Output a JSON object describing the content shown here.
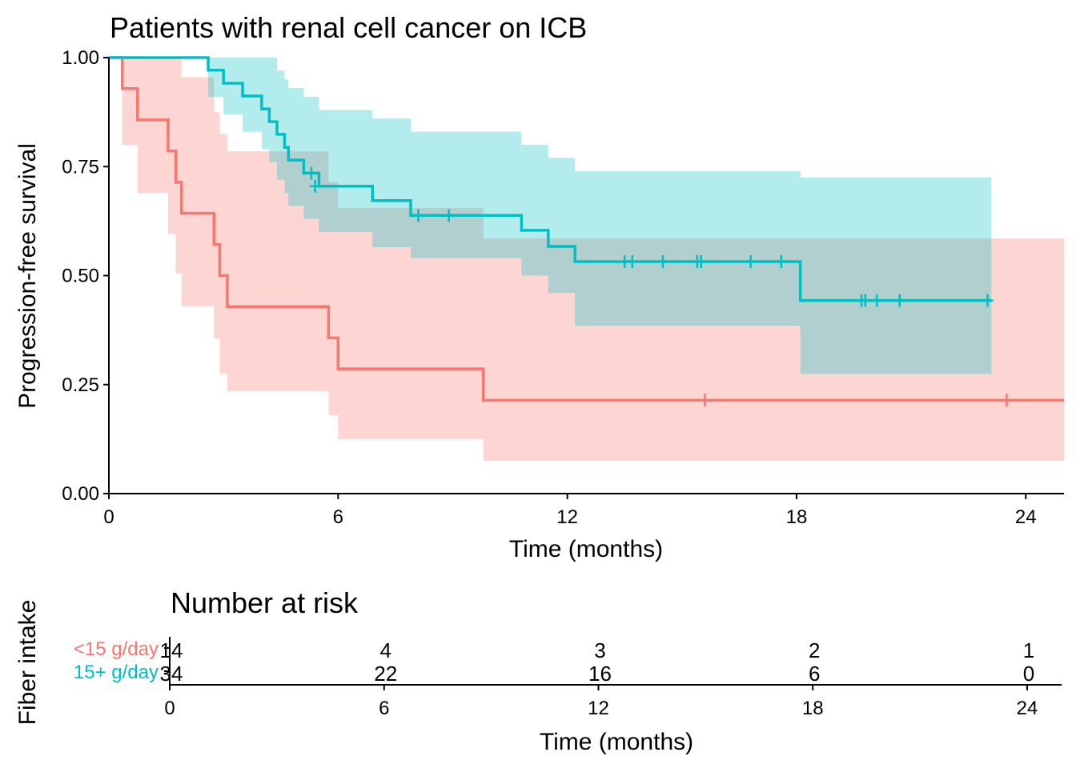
{
  "chart_data": [
    {
      "type": "line",
      "subtype": "kaplan-meier",
      "title": "Patients with renal cell cancer on ICB",
      "xlabel": "Time (months)",
      "ylabel": "Progression-free survival",
      "xlim": [
        0,
        25
      ],
      "ylim": [
        0,
        1
      ],
      "x_ticks": [
        0,
        6,
        12,
        18,
        24
      ],
      "y_ticks": [
        0,
        0.25,
        0.5,
        0.75,
        1
      ],
      "y_tick_labels": [
        "0.00",
        "0.25",
        "0.50",
        "0.75",
        "1.00"
      ],
      "grid": false,
      "legend": "none",
      "series": [
        {
          "color": "#F8766D",
          "band_color": "#F8766D",
          "steps": [
            [
              0,
              1.0
            ],
            [
              0.35,
              0.929
            ],
            [
              0.75,
              0.857
            ],
            [
              1.55,
              0.786
            ],
            [
              1.75,
              0.714
            ],
            [
              1.9,
              0.643
            ],
            [
              2.75,
              0.571
            ],
            [
              2.9,
              0.5
            ],
            [
              3.1,
              0.429
            ],
            [
              5.75,
              0.357
            ],
            [
              6.0,
              0.286
            ],
            [
              9.8,
              0.214
            ],
            [
              25,
              0.214
            ]
          ],
          "upper": [
            [
              0,
              1.0
            ],
            [
              0.35,
              1.0
            ],
            [
              0.75,
              1.0
            ],
            [
              1.55,
              1.0
            ],
            [
              1.75,
              1.0
            ],
            [
              1.9,
              0.955
            ],
            [
              2.75,
              0.875
            ],
            [
              2.9,
              0.825
            ],
            [
              3.1,
              0.785
            ],
            [
              5.75,
              0.715
            ],
            [
              6.0,
              0.655
            ],
            [
              9.8,
              0.585
            ],
            [
              25,
              0.585
            ]
          ],
          "lower": [
            [
              0,
              1.0
            ],
            [
              0.35,
              0.8
            ],
            [
              0.75,
              0.69
            ],
            [
              1.55,
              0.595
            ],
            [
              1.75,
              0.505
            ],
            [
              1.9,
              0.43
            ],
            [
              2.75,
              0.355
            ],
            [
              2.9,
              0.275
            ],
            [
              3.1,
              0.235
            ],
            [
              5.75,
              0.18
            ],
            [
              6.0,
              0.125
            ],
            [
              9.8,
              0.075
            ],
            [
              25,
              0.075
            ]
          ],
          "censored": [
            [
              15.6,
              0.214
            ],
            [
              23.5,
              0.214
            ]
          ]
        },
        {
          "color": "#00BFC4",
          "band_color": "#00BFC4",
          "steps": [
            [
              0,
              1.0
            ],
            [
              2.6,
              0.971
            ],
            [
              3.0,
              0.941
            ],
            [
              3.5,
              0.912
            ],
            [
              4.0,
              0.882
            ],
            [
              4.2,
              0.853
            ],
            [
              4.4,
              0.824
            ],
            [
              4.6,
              0.794
            ],
            [
              4.7,
              0.765
            ],
            [
              5.1,
              0.735
            ],
            [
              5.5,
              0.705
            ],
            [
              6.9,
              0.672
            ],
            [
              7.9,
              0.638
            ],
            [
              10.8,
              0.604
            ],
            [
              11.5,
              0.567
            ],
            [
              12.2,
              0.532
            ],
            [
              18.1,
              0.443
            ],
            [
              23.1,
              0.443
            ]
          ],
          "upper": [
            [
              0,
              1.0
            ],
            [
              2.6,
              1.0
            ],
            [
              3.0,
              1.0
            ],
            [
              3.5,
              1.0
            ],
            [
              4.0,
              1.0
            ],
            [
              4.2,
              1.0
            ],
            [
              4.4,
              0.97
            ],
            [
              4.6,
              0.95
            ],
            [
              4.7,
              0.93
            ],
            [
              5.1,
              0.91
            ],
            [
              5.5,
              0.88
            ],
            [
              6.9,
              0.86
            ],
            [
              7.9,
              0.83
            ],
            [
              10.8,
              0.8
            ],
            [
              11.5,
              0.77
            ],
            [
              12.2,
              0.74
            ],
            [
              18.1,
              0.725
            ],
            [
              23.1,
              0.725
            ]
          ],
          "lower": [
            [
              0,
              1.0
            ],
            [
              2.6,
              0.91
            ],
            [
              3.0,
              0.87
            ],
            [
              3.5,
              0.83
            ],
            [
              4.0,
              0.79
            ],
            [
              4.2,
              0.76
            ],
            [
              4.4,
              0.72
            ],
            [
              4.6,
              0.69
            ],
            [
              4.7,
              0.66
            ],
            [
              5.1,
              0.63
            ],
            [
              5.5,
              0.6
            ],
            [
              6.9,
              0.565
            ],
            [
              7.9,
              0.54
            ],
            [
              10.8,
              0.5
            ],
            [
              11.5,
              0.46
            ],
            [
              12.2,
              0.385
            ],
            [
              18.1,
              0.275
            ],
            [
              23.1,
              0.275
            ]
          ],
          "censored": [
            [
              5.3,
              0.735
            ],
            [
              5.4,
              0.705
            ],
            [
              8.1,
              0.638
            ],
            [
              8.9,
              0.638
            ],
            [
              13.5,
              0.532
            ],
            [
              13.7,
              0.532
            ],
            [
              14.5,
              0.532
            ],
            [
              15.4,
              0.532
            ],
            [
              15.5,
              0.532
            ],
            [
              16.8,
              0.532
            ],
            [
              17.6,
              0.532
            ],
            [
              19.7,
              0.443
            ],
            [
              19.8,
              0.443
            ],
            [
              20.1,
              0.443
            ],
            [
              20.7,
              0.443
            ],
            [
              23.0,
              0.443
            ]
          ]
        }
      ]
    },
    {
      "type": "table",
      "title": "Number at risk",
      "xlabel": "Time (months)",
      "ylabel": "Fiber intake",
      "xlim": [
        0,
        24
      ],
      "x_ticks": [
        0,
        6,
        12,
        18,
        24
      ],
      "groups": [
        {
          "name": "<15 g/day",
          "color": "#F8766D",
          "values": [
            14,
            4,
            3,
            2,
            1
          ]
        },
        {
          "name": "15+ g/day",
          "color": "#00BFC4",
          "values": [
            34,
            22,
            16,
            6,
            0
          ]
        }
      ]
    }
  ]
}
